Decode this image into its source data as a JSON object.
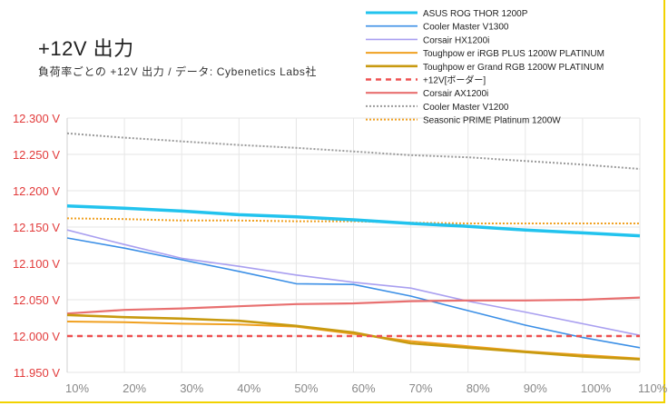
{
  "title": "+12V 出力",
  "subtitle": "負荷率ごとの +12V 出力 / データ: Cybenetics Labs社",
  "chart_data": {
    "type": "line",
    "title": "+12V 出力",
    "subtitle": "負荷率ごとの +12V 出力 / データ: Cybenetics Labs社",
    "x": [
      "10%",
      "20%",
      "30%",
      "40%",
      "50%",
      "60%",
      "70%",
      "80%",
      "90%",
      "100%",
      "110%"
    ],
    "ylim": [
      11.95,
      12.3
    ],
    "yticks": [
      11.95,
      12.0,
      12.05,
      12.1,
      12.15,
      12.2,
      12.25,
      12.3
    ],
    "ytick_labels": [
      "11.950 V",
      "12.000 V",
      "12.050 V",
      "12.100 V",
      "12.150 V",
      "12.200 V",
      "12.250 V",
      "12.300 V"
    ],
    "grid": true,
    "legend_position": "top-right",
    "series": [
      {
        "name": "ASUS ROG THOR 1200P",
        "color": "#22c3ee",
        "width": 3.5,
        "dash": "",
        "values": [
          12.179,
          12.176,
          12.172,
          12.167,
          12.164,
          12.16,
          12.155,
          12.151,
          12.146,
          12.142,
          12.138
        ]
      },
      {
        "name": "Cooler Master V1300",
        "color": "#3b8fe6",
        "width": 1.6,
        "dash": "",
        "values": [
          12.135,
          12.121,
          12.105,
          12.089,
          12.072,
          12.071,
          12.055,
          12.035,
          12.015,
          11.998,
          11.984
        ]
      },
      {
        "name": "Corsair HX1200i",
        "color": "#a99ff0",
        "width": 1.6,
        "dash": "",
        "values": [
          12.146,
          12.126,
          12.107,
          12.096,
          12.084,
          12.074,
          12.066,
          12.048,
          12.033,
          12.017,
          12.001
        ]
      },
      {
        "name": "Toughpow er iRGB PLUS 1200W PLATINUM",
        "color": "#f0a020",
        "width": 2.0,
        "dash": "",
        "values": [
          12.02,
          12.019,
          12.017,
          12.016,
          12.013,
          12.003,
          11.993,
          11.986,
          11.979,
          11.974,
          11.969
        ]
      },
      {
        "name": "Toughpow er Grand RGB 1200W PLATINUM",
        "color": "#c89a10",
        "width": 2.6,
        "dash": "",
        "values": [
          12.029,
          12.026,
          12.024,
          12.021,
          12.014,
          12.005,
          11.99,
          11.984,
          11.978,
          11.972,
          11.968
        ]
      },
      {
        "name": "+12V[ボーダー]",
        "color": "#ee5050",
        "width": 2.6,
        "dash": "6 5",
        "values": [
          12.0,
          12.0,
          12.0,
          12.0,
          12.0,
          12.0,
          12.0,
          12.0,
          12.0,
          12.0,
          12.0
        ]
      },
      {
        "name": "Corsair AX1200i",
        "color": "#e87070",
        "width": 2.2,
        "dash": "",
        "values": [
          12.031,
          12.036,
          12.038,
          12.041,
          12.044,
          12.045,
          12.048,
          12.049,
          12.049,
          12.05,
          12.053
        ]
      },
      {
        "name": "Cooler Master V1200",
        "color": "#9a9a9a",
        "width": 2.0,
        "dash": "2 2",
        "values": [
          12.279,
          12.273,
          12.268,
          12.263,
          12.259,
          12.254,
          12.249,
          12.246,
          12.241,
          12.236,
          12.23
        ]
      },
      {
        "name": "Seasonic PRIME Platinum 1200W",
        "color": "#f0a020",
        "width": 2.0,
        "dash": "2 2",
        "values": [
          12.162,
          12.161,
          12.159,
          12.159,
          12.158,
          12.158,
          12.156,
          12.155,
          12.155,
          12.155,
          12.155
        ]
      }
    ]
  }
}
